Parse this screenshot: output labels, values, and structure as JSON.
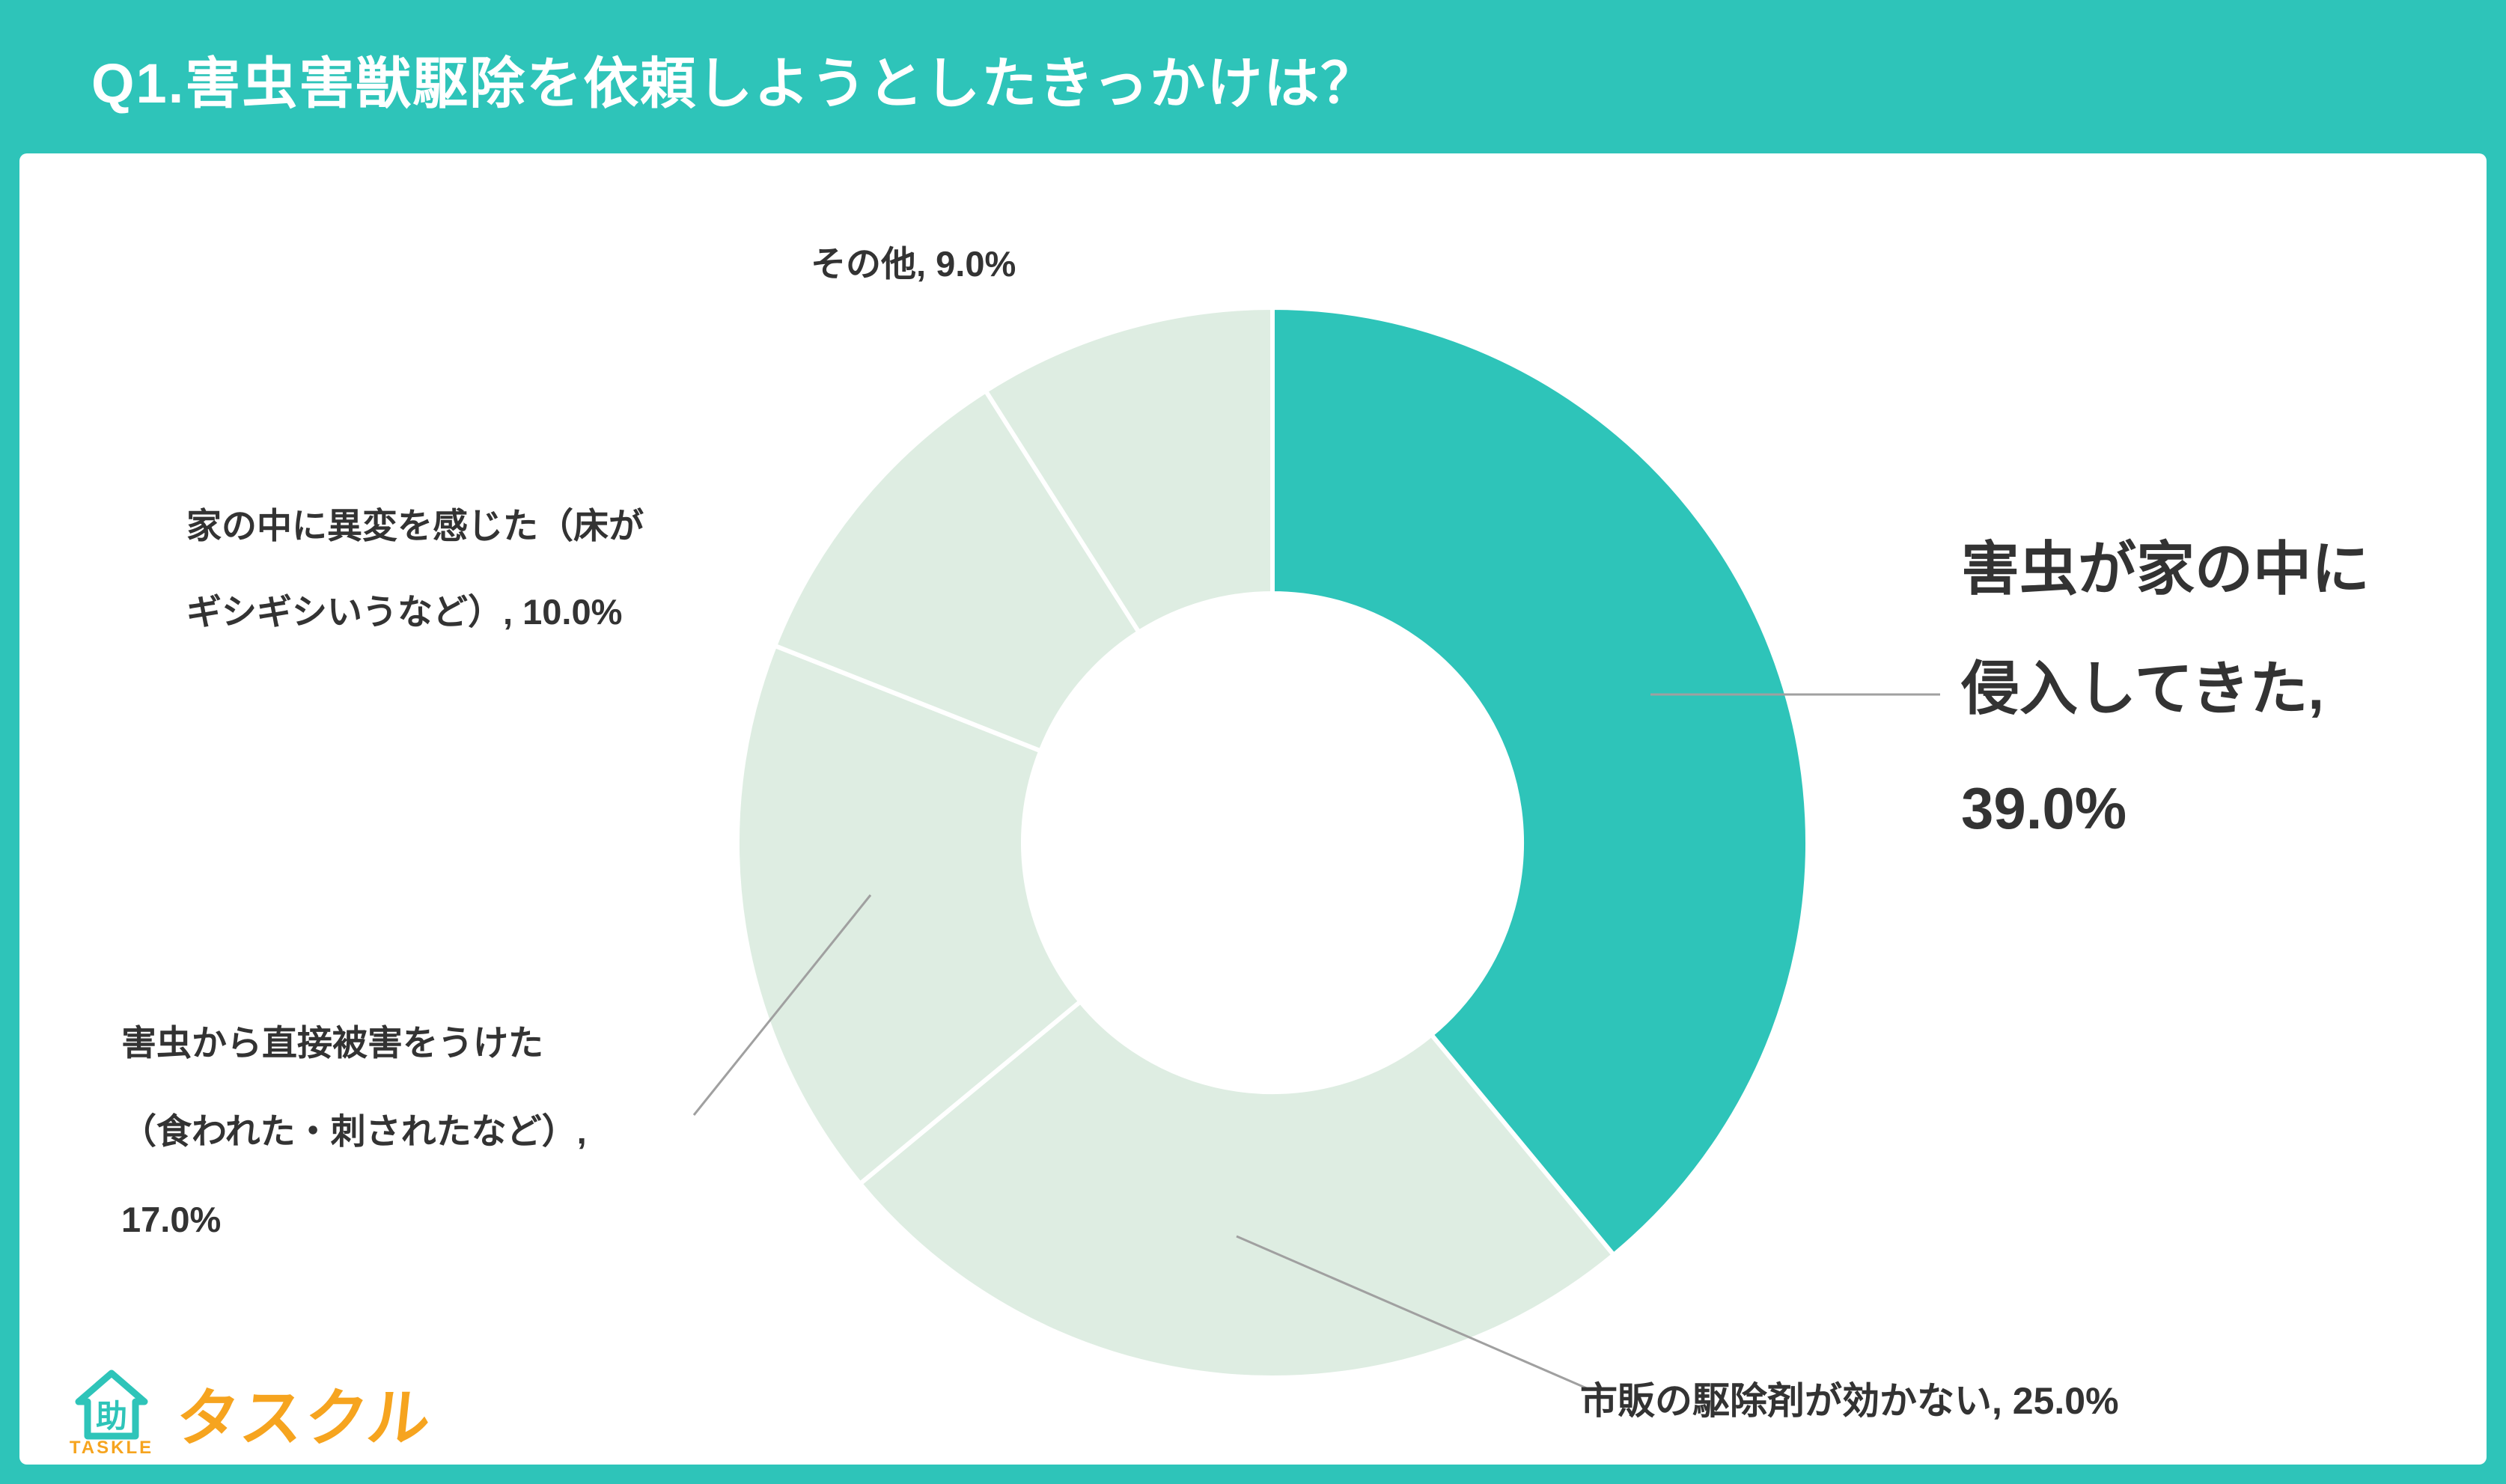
{
  "header": {
    "title": "Q1.害虫害獣駆除を依頼しようとしたきっかけは？"
  },
  "colors": {
    "accent_teal": "#2EC4B9",
    "light_green": "#DEEDE2",
    "text_dark": "#333333",
    "leader_line": "#A0A0A0",
    "logo_orange": "#F6A41F",
    "background": "#FFFFFF"
  },
  "chart_data": {
    "type": "pie",
    "subtype": "donut",
    "title": "Q1.害虫害獣駆除を依頼しようとしたきっかけは？",
    "start_angle_deg": 0,
    "direction": "clockwise",
    "unit": "%",
    "legend": "none",
    "categories": [
      "害虫が家の中に侵入してきた",
      "市販の駆除剤が効かない",
      "害虫から直接被害をうけた（食われた・刺されたなど）",
      "家の中に異変を感じた（床がギシギシいうなど）",
      "その他"
    ],
    "values": [
      39.0,
      25.0,
      17.0,
      10.0,
      9.0
    ],
    "segment_colors": [
      "#2EC4B9",
      "#DEEDE2",
      "#DEEDE2",
      "#DEEDE2",
      "#DEEDE2"
    ]
  },
  "labels": {
    "other": "その他, 9.0%",
    "anomaly_line1": "家の中に異変を感じた（床が",
    "anomaly_line2": "ギシギシいうなど）, 10.0%",
    "direct_line1": "害虫から直接被害をうけた",
    "direct_line2": "（食われた・刺されたなど）,",
    "direct_line3": "17.0%",
    "main_line1": "害虫が家の中に",
    "main_line2": "侵入してきた,",
    "main_line3": "39.0%",
    "otc": "市販の駆除剤が効かない, 25.0%"
  },
  "logo": {
    "brand": "タスクル",
    "sub": "TASKLE",
    "house_char": "助"
  }
}
